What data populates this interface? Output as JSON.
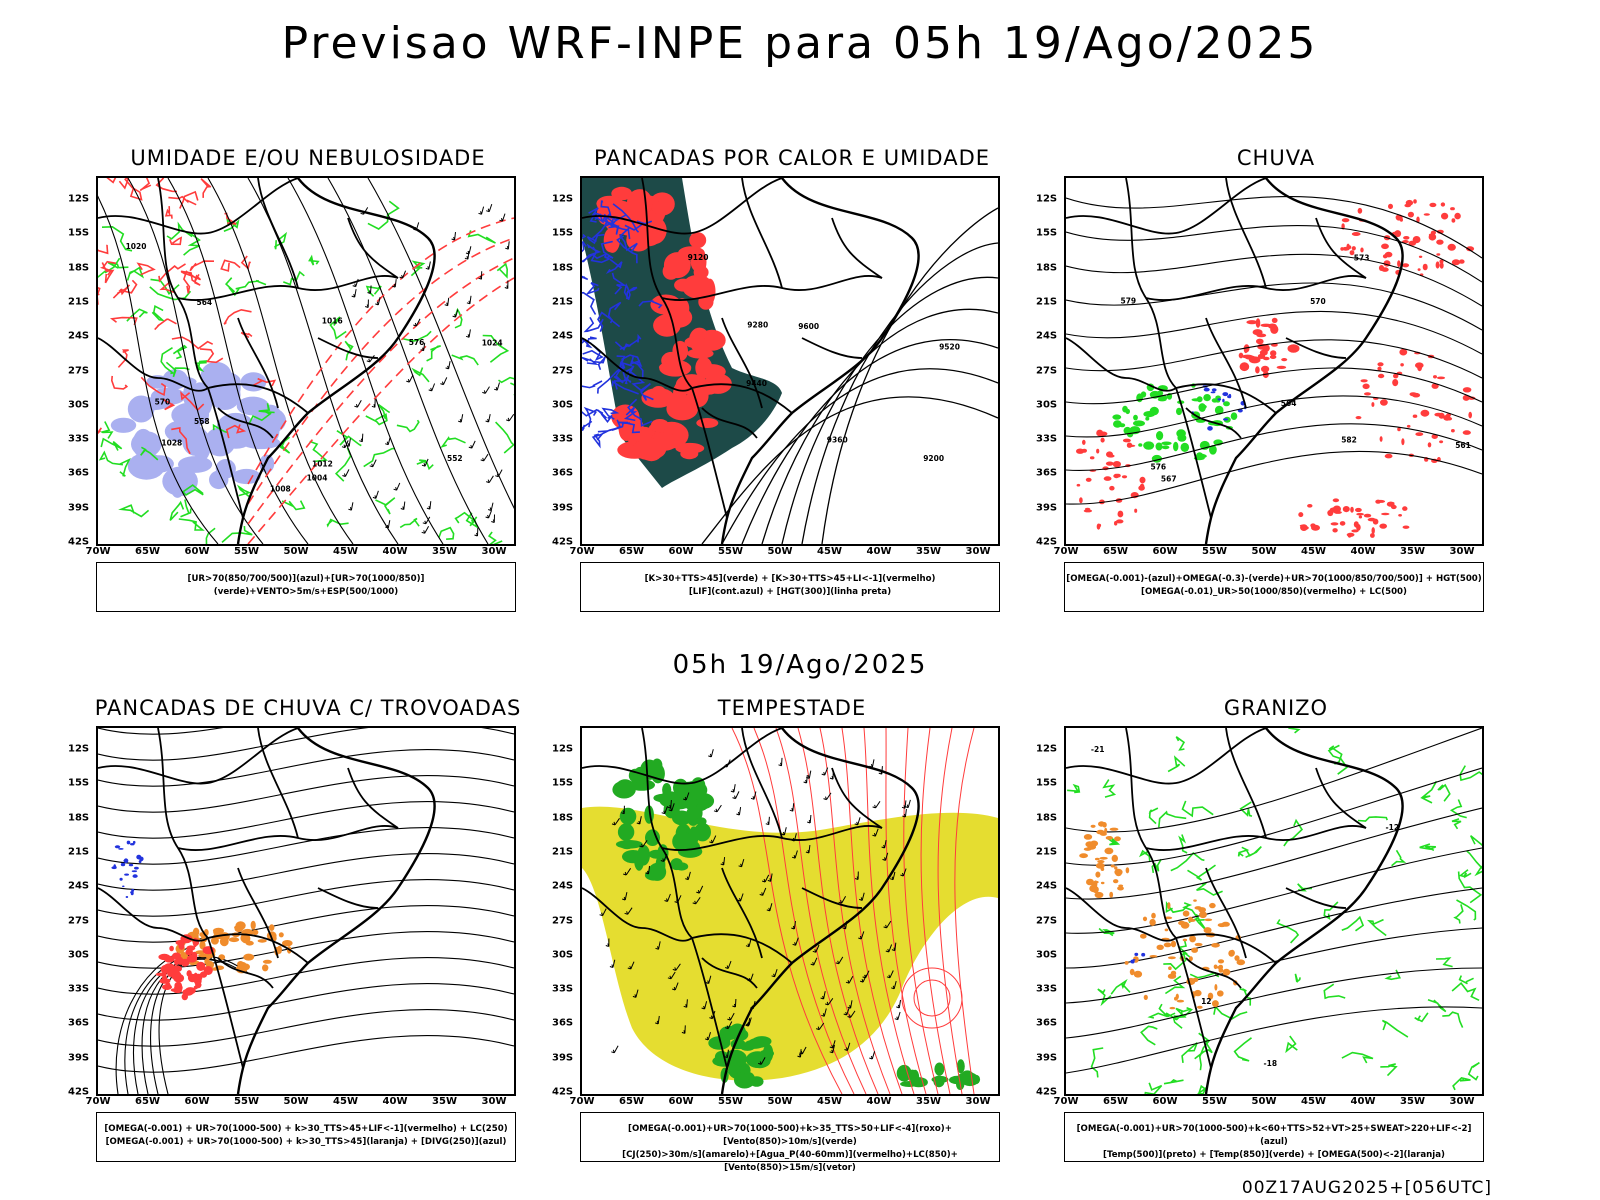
{
  "title": "Previsao WRF-INPE  para 05h 19/Ago/2025",
  "subtitle": "05h 19/Ago/2025",
  "footer": "00Z17AUG2025+[056UTC]",
  "lat_labels": [
    "12S",
    "15S",
    "18S",
    "21S",
    "24S",
    "27S",
    "30S",
    "33S",
    "36S",
    "39S",
    "42S"
  ],
  "lon_labels": [
    "70W",
    "65W",
    "60W",
    "55W",
    "50W",
    "45W",
    "40W",
    "35W",
    "30W"
  ],
  "panels": [
    {
      "title": "UMIDADE E/OU NEBULOSIDADE",
      "legend": [
        "[UR>70(850/700/500)](azul)+[UR>70(1000/850)](verde)+VENTO>5m/s+ESP(500/1000)"
      ],
      "contour_labels": [
        "1008",
        "1012",
        "1016",
        "1020",
        "1024",
        "1028",
        "1004",
        "570",
        "576",
        "564",
        "558",
        "552"
      ]
    },
    {
      "title": "PANCADAS POR CALOR E UMIDADE",
      "legend": [
        "[K>30+TTS>45](verde)  +  [K>30+TTS>45+LI<-1](vermelho)",
        "[LIF](cont.azul)  +  [HGT(300)](linha preta)"
      ],
      "contour_labels": [
        "9600",
        "9520",
        "9440",
        "9360",
        "9280",
        "9200",
        "9120"
      ]
    },
    {
      "title": "CHUVA",
      "legend": [
        "[OMEGA(-0.001)-(azul)+OMEGA(-0.3)-(verde)+UR>70(1000/850/700/500)]  +  HGT(500)",
        "[OMEGA(-0.01)_UR>50(1000/850)(vermelho) + LC(500)"
      ],
      "contour_labels": [
        "582",
        "579",
        "576",
        "573",
        "570",
        "567",
        "564",
        "561"
      ]
    },
    {
      "title": "PANCADAS DE CHUVA C/ TROVOADAS",
      "legend": [
        "[OMEGA(-0.001) + UR>70(1000-500) + k>30_TTS>45+LIF<-1](vermelho) + LC(250)",
        "[OMEGA(-0.001) + UR>70(1000-500) + k>30_TTS>45](laranja) + [DIVG(250)](azul)"
      ],
      "contour_labels": []
    },
    {
      "title": "TEMPESTADE",
      "legend": [
        "[OMEGA(-0.001)+UR>70(1000-500)+k>35_TTS>50+LIF<-4](roxo)+[Vento(850)>10m/s](verde)",
        "[CJ(250)>30m/s](amarelo)+[Agua_P(40-60mm)](vermelho)+LC(850)+[Vento(850)>15m/s](vetor)"
      ],
      "contour_labels": []
    },
    {
      "title": "GRANIZO",
      "legend": [
        "[OMEGA(-0.001)+UR>70(1000-500)+k<60+TTS>52+VT>25+SWEAT>220+LIF<-2](azul)",
        "[Temp(500)](preto) + [Temp(850)](verde) + [OMEGA(500)<-2](laranja)"
      ],
      "contour_labels": [
        "-12",
        "-18",
        "-21",
        "12"
      ]
    }
  ],
  "colors": {
    "humid_low": "#22dd22",
    "humid_mid": "#aab0f0",
    "red": "#ff3c3c",
    "dark_teal": "#1d4a48",
    "blue": "#2233dd",
    "orange": "#f08c2c",
    "yellow": "#e5dd30",
    "green_fill": "#22aa22"
  }
}
